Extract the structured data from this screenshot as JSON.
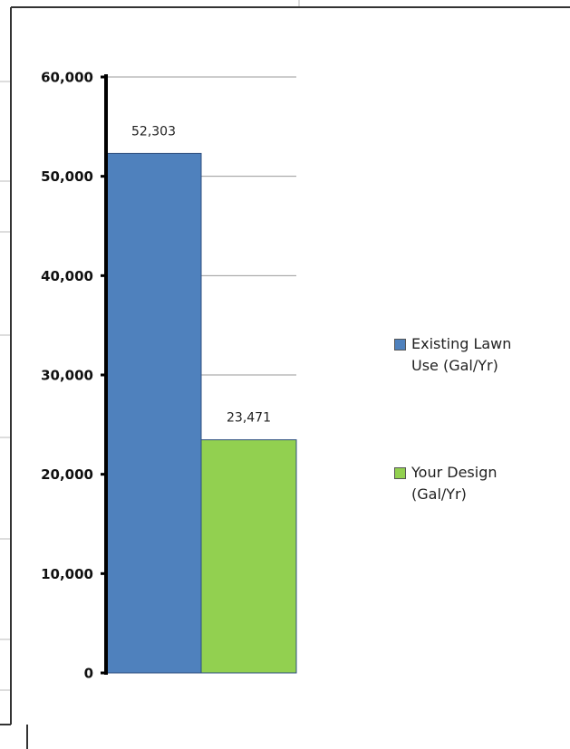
{
  "chart_data": {
    "type": "bar",
    "categories": [
      null
    ],
    "series": [
      {
        "name": "Existing Lawn Use (Gal/Yr)",
        "color": "#4f81bd",
        "values": [
          52303
        ],
        "value_labels": [
          "52,303"
        ]
      },
      {
        "name": "Your Design (Gal/Yr)",
        "color": "#92d050",
        "values": [
          23471
        ],
        "value_labels": [
          "23,471"
        ]
      }
    ],
    "ylim": [
      0,
      60000
    ],
    "yticks": [
      0,
      {
        "value": 10000,
        "label": "10,000"
      },
      {
        "value": 20000,
        "label": "20,000"
      },
      {
        "value": 30000,
        "label": "30,000"
      },
      {
        "value": 40000,
        "label": "40,000"
      },
      {
        "value": 50000,
        "label": "50,000"
      },
      {
        "value": 60000,
        "label": "60,000"
      }
    ],
    "grid": true,
    "legend": "right"
  }
}
